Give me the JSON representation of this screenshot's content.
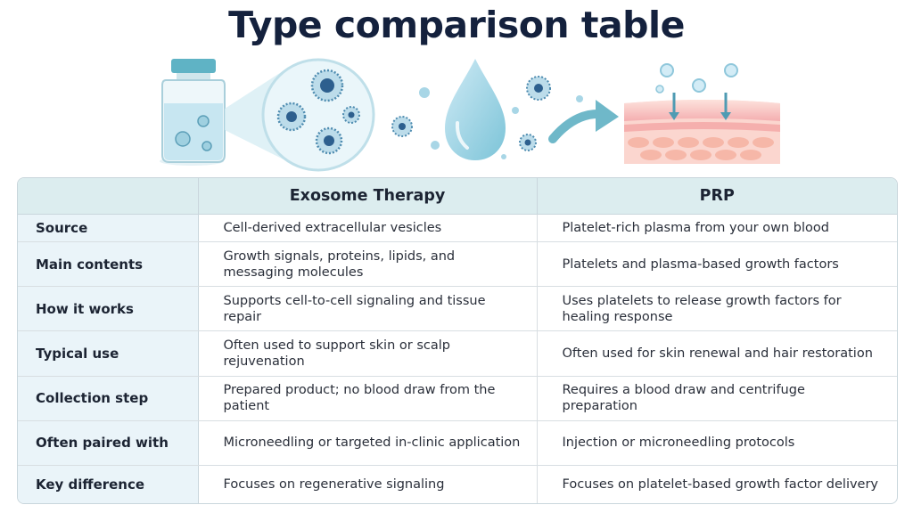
{
  "title": "Type comparison table",
  "table": {
    "headers": [
      "",
      "Exosome Therapy",
      "PRP"
    ],
    "rows": [
      {
        "label": "Source",
        "exosome": "Cell-derived extracellular vesicles",
        "prp": "Platelet-rich plasma from your own blood"
      },
      {
        "label": "Main contents",
        "exosome": "Growth signals, proteins, lipids, and messaging molecules",
        "prp": "Platelets and plasma-based growth factors"
      },
      {
        "label": "How it works",
        "exosome": "Supports cell-to-cell signaling and tissue repair",
        "prp": "Uses platelets to release growth factors for healing response"
      },
      {
        "label": "Typical use",
        "exosome": "Often used to support skin or scalp rejuvenation",
        "prp": "Often used for skin renewal and hair restoration"
      },
      {
        "label": "Collection step",
        "exosome": "Prepared product; no blood draw from the patient",
        "prp": "Requires a blood draw and centrifuge preparation"
      },
      {
        "label": "Often paired with",
        "exosome": "Microneedling or targeted in-clinic application",
        "prp": "Injection or microneedling protocols"
      },
      {
        "label": "Key difference",
        "exosome": "Focuses on regenerative signaling",
        "prp": "Focuses on platelet-based growth factor delivery"
      }
    ]
  },
  "illustration": {
    "icons": [
      "vial-icon",
      "magnified-exosomes-icon",
      "droplet-icon",
      "arrow-icon",
      "skin-layers-icon"
    ]
  },
  "colors": {
    "title": "#14213d",
    "header_bg": "#dcedef",
    "label_bg": "#eaf4f9",
    "accent": "#7cc4d8"
  }
}
